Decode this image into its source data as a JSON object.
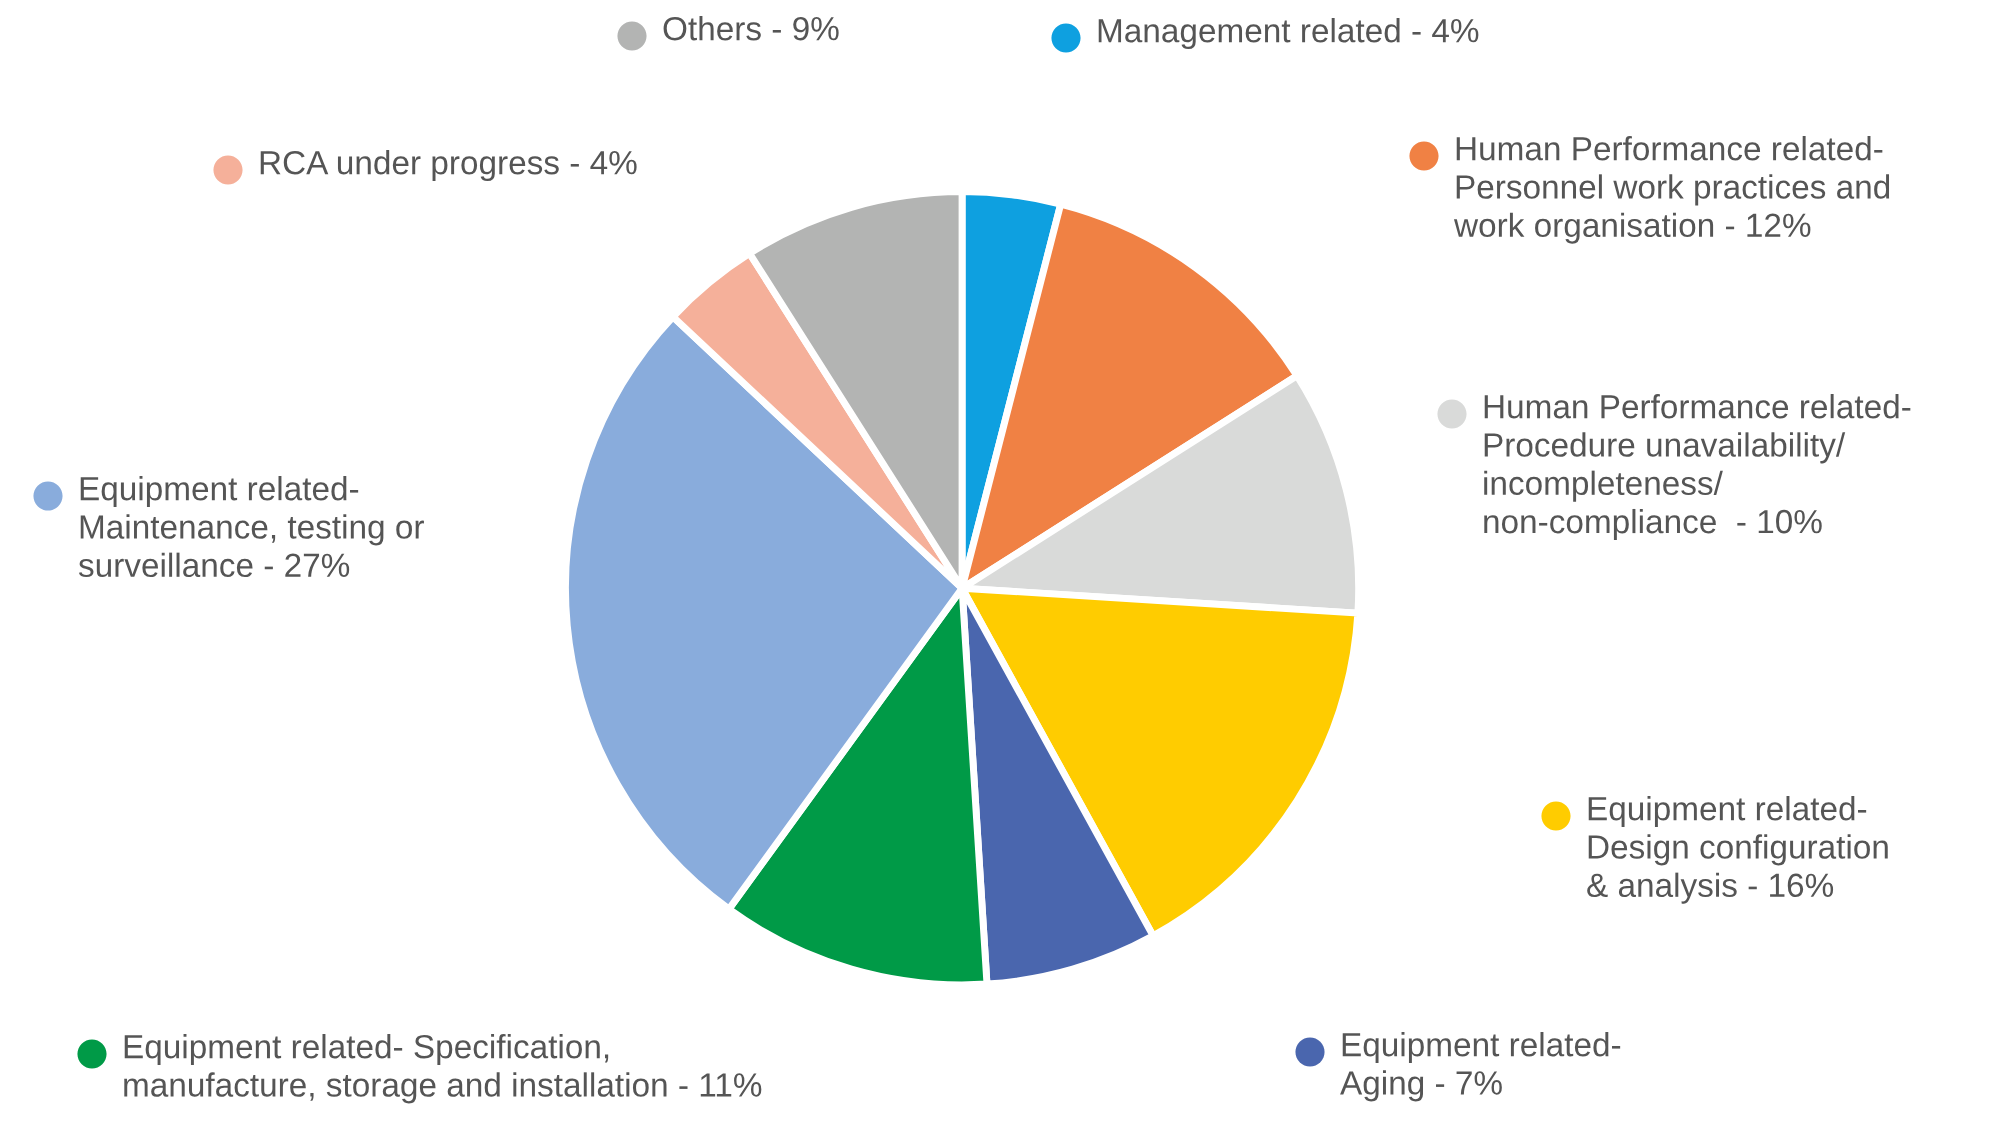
{
  "chart_data": {
    "type": "pie",
    "categories": [
      "Management related - 4%",
      "Human Performance related-\nPersonnel work practices and\nwork organisation - 12%",
      "Human Performance related-\nProcedure unavailability/\nincompleteness/\nnon-compliance  - 10%",
      "Equipment related-\nDesign configuration\n& analysis - 16%",
      "Equipment related-\nAging - 7%",
      "Equipment related- Specification,\nmanufacture, storage and installation - 11%",
      "Equipment related-\nMaintenance, testing or\nsurveillance - 27%",
      "RCA under progress - 4%",
      "Others - 9%"
    ],
    "values": [
      4,
      12,
      10,
      16,
      7,
      11,
      27,
      4,
      9
    ],
    "legend": "right",
    "colors": [
      "#0ea0e0",
      "#f08144",
      "#d9dad9",
      "#ffcc00",
      "#4a66ae",
      "#009a47",
      "#89acdc",
      "#f5b09a",
      "#b3b4b3"
    ]
  }
}
